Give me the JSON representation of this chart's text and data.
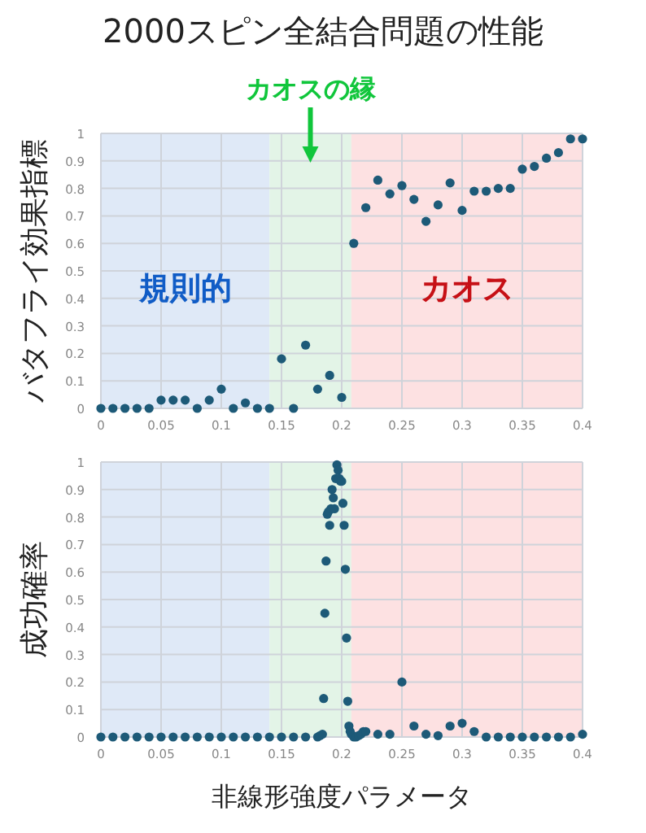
{
  "chart_data": [
    {
      "type": "scatter",
      "title": "2000スピン全結合問題の性能",
      "ylabel": "バタフライ効果指標",
      "marker": "circle",
      "grid": true,
      "xlim": [
        0,
        0.4
      ],
      "ylim": [
        0,
        1
      ],
      "xticks": [
        0,
        0.05,
        0.1,
        0.15,
        0.2,
        0.25,
        0.3,
        0.35,
        0.4
      ],
      "yticks": [
        0,
        0.1,
        0.2,
        0.3,
        0.4,
        0.5,
        0.6,
        0.7,
        0.8,
        0.9,
        1
      ],
      "bands": [
        {
          "axis": "x",
          "from": 0,
          "to": 0.14,
          "label": "規則的",
          "color": "#dfe9f7"
        },
        {
          "axis": "x",
          "from": 0.14,
          "to": 0.208,
          "label": "カオスの縁",
          "color": "#e3f4e7"
        },
        {
          "axis": "x",
          "from": 0.208,
          "to": 0.4,
          "label": "カオス",
          "color": "#fde1e2"
        }
      ],
      "series": [
        {
          "color": "#1d5a78",
          "x": [
            0,
            0.01,
            0.02,
            0.03,
            0.04,
            0.05,
            0.06,
            0.07,
            0.08,
            0.09,
            0.1,
            0.11,
            0.12,
            0.13,
            0.14,
            0.15,
            0.16,
            0.17,
            0.18,
            0.19,
            0.2,
            0.21,
            0.22,
            0.23,
            0.24,
            0.25,
            0.26,
            0.27,
            0.28,
            0.29,
            0.3,
            0.31,
            0.32,
            0.33,
            0.34,
            0.35,
            0.36,
            0.37,
            0.38,
            0.39,
            0.4
          ],
          "values": [
            0,
            0,
            0,
            0,
            0,
            0.03,
            0.03,
            0.03,
            0,
            0.03,
            0.07,
            0,
            0.02,
            0,
            0,
            0.18,
            0,
            0.23,
            0.07,
            0.12,
            0.04,
            0.6,
            0.73,
            0.83,
            0.78,
            0.81,
            0.76,
            0.68,
            0.74,
            0.82,
            0.72,
            0.79,
            0.79,
            0.8,
            0.8,
            0.87,
            0.88,
            0.91,
            0.93,
            0.98,
            0.98
          ]
        }
      ]
    },
    {
      "type": "scatter",
      "xlabel": "非線形強度パラメータ",
      "ylabel": "成功確率",
      "marker": "circle",
      "grid": true,
      "xlim": [
        0,
        0.4
      ],
      "ylim": [
        0,
        1
      ],
      "xticks": [
        0,
        0.05,
        0.1,
        0.15,
        0.2,
        0.25,
        0.3,
        0.35,
        0.4
      ],
      "yticks": [
        0,
        0.1,
        0.2,
        0.3,
        0.4,
        0.5,
        0.6,
        0.7,
        0.8,
        0.9,
        1
      ],
      "bands": [
        {
          "axis": "x",
          "from": 0,
          "to": 0.14,
          "color": "#dfe9f7"
        },
        {
          "axis": "x",
          "from": 0.14,
          "to": 0.208,
          "color": "#e3f4e7"
        },
        {
          "axis": "x",
          "from": 0.208,
          "to": 0.4,
          "color": "#fde1e2"
        }
      ],
      "series": [
        {
          "color": "#1d5a78",
          "x": [
            0,
            0.01,
            0.02,
            0.03,
            0.04,
            0.05,
            0.06,
            0.07,
            0.08,
            0.09,
            0.1,
            0.11,
            0.12,
            0.13,
            0.14,
            0.15,
            0.16,
            0.17,
            0.18,
            0.182,
            0.184,
            0.185,
            0.186,
            0.187,
            0.188,
            0.189,
            0.19,
            0.191,
            0.192,
            0.193,
            0.194,
            0.195,
            0.196,
            0.197,
            0.198,
            0.199,
            0.2,
            0.201,
            0.202,
            0.203,
            0.204,
            0.205,
            0.206,
            0.207,
            0.208,
            0.21,
            0.212,
            0.214,
            0.216,
            0.218,
            0.22,
            0.23,
            0.24,
            0.25,
            0.26,
            0.27,
            0.28,
            0.29,
            0.3,
            0.31,
            0.32,
            0.33,
            0.34,
            0.35,
            0.36,
            0.37,
            0.38,
            0.39,
            0.4
          ],
          "values": [
            0,
            0,
            0,
            0,
            0,
            0,
            0,
            0,
            0,
            0,
            0,
            0,
            0,
            0,
            0,
            0,
            0,
            0,
            0,
            0.005,
            0.01,
            0.14,
            0.45,
            0.64,
            0.81,
            0.82,
            0.77,
            0.83,
            0.9,
            0.87,
            0.83,
            0.94,
            0.99,
            0.97,
            0.94,
            0.93,
            0.93,
            0.85,
            0.77,
            0.61,
            0.36,
            0.13,
            0.04,
            0.02,
            0.01,
            0,
            0,
            0.005,
            0.01,
            0.02,
            0.02,
            0.01,
            0.01,
            0.2,
            0.04,
            0.01,
            0.005,
            0.04,
            0.05,
            0.02,
            0,
            0,
            0,
            0,
            0,
            0,
            0,
            0,
            0.01
          ]
        }
      ]
    }
  ]
}
